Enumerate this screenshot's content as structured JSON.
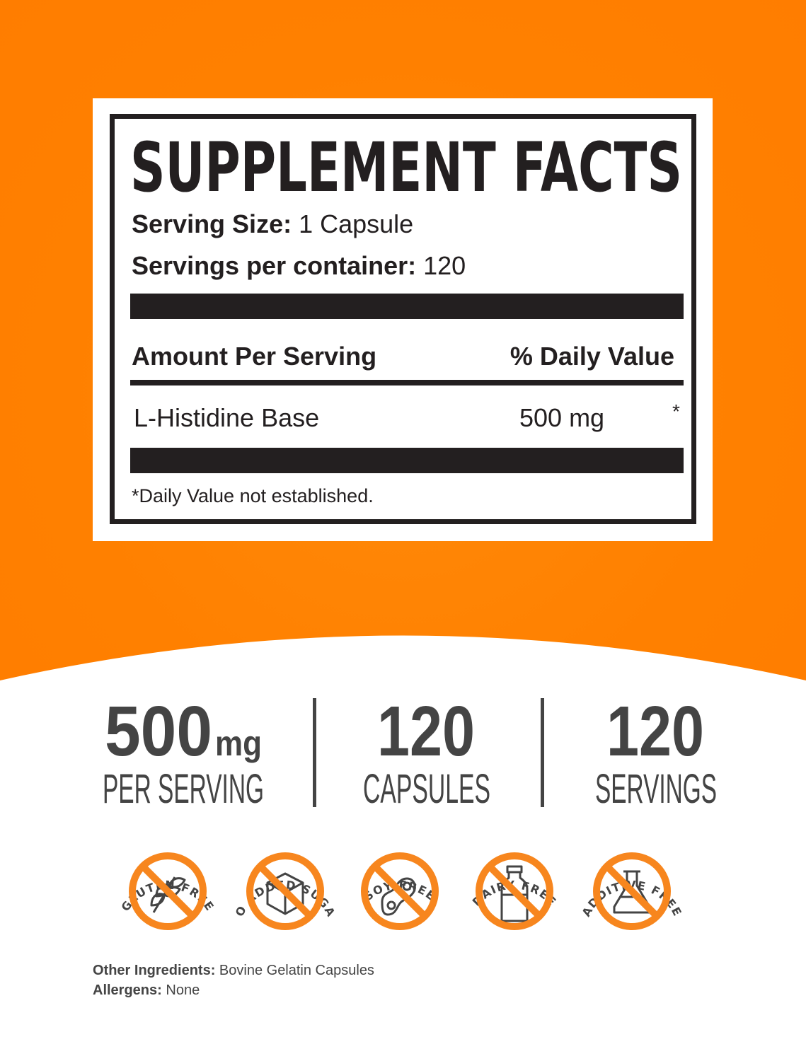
{
  "label": {
    "title": "SUPPLEMENT FACTS",
    "serving_size_label": "Serving Size:",
    "serving_size_value": "1 Capsule",
    "servings_label": "Servings per container:",
    "servings_value": "120",
    "amount_header": "Amount Per Serving",
    "dv_header": "% Daily Value",
    "ingredient": {
      "name": "L-Histidine Base",
      "amount": "500 mg",
      "dv": "*"
    },
    "footnote": "*Daily Value not established."
  },
  "stats": [
    {
      "value": "500",
      "unit": "mg",
      "label": "PER SERVING"
    },
    {
      "value": "120",
      "unit": "",
      "label": "CAPSULES"
    },
    {
      "value": "120",
      "unit": "",
      "label": "SERVINGS"
    }
  ],
  "badges": [
    {
      "label": "GLUTEN FREE",
      "icon": "wheat-icon"
    },
    {
      "label": "NO ADDED SUGAR",
      "icon": "sugar-cube-icon"
    },
    {
      "label": "SOY FREE",
      "icon": "soybean-icon"
    },
    {
      "label": "DAIRY FREE",
      "icon": "milk-bottle-icon"
    },
    {
      "label": "ADDITIVE FREE",
      "icon": "flask-icon"
    }
  ],
  "footer": {
    "other_label": "Other Ingredients:",
    "other_value": "Bovine Gelatin Capsules",
    "allergens_label": "Allergens:",
    "allergens_value": "None"
  },
  "colors": {
    "orange": "#ff8000",
    "badge_orange": "#f7861e",
    "text": "#231f20",
    "gray": "#444444"
  }
}
